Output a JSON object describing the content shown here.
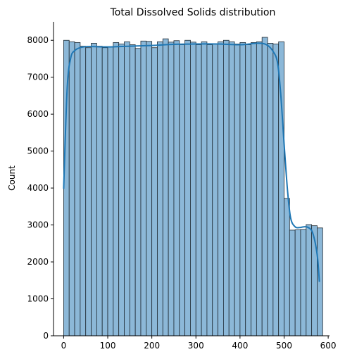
{
  "chart_data": {
    "type": "bar",
    "title": "Total Dissolved Solids distribution",
    "xlabel": "",
    "ylabel": "Count",
    "xlim": [
      -23,
      603
    ],
    "ylim": [
      0,
      8500
    ],
    "xticks": [
      0,
      100,
      200,
      300,
      400,
      500,
      600
    ],
    "yticks": [
      0,
      1000,
      2000,
      3000,
      4000,
      5000,
      6000,
      7000,
      8000
    ],
    "grid": false,
    "bin_width": 12.5,
    "bin_start": 0,
    "values": [
      8000,
      7960,
      7940,
      7840,
      7800,
      7920,
      7840,
      7800,
      7820,
      7940,
      7900,
      7960,
      7880,
      7780,
      7980,
      7970,
      7800,
      7960,
      8040,
      7950,
      7990,
      7880,
      8000,
      7950,
      7880,
      7960,
      7880,
      7900,
      7960,
      8000,
      7960,
      7900,
      7940,
      7880,
      7940,
      7960,
      8080,
      7920,
      7900,
      7960,
      3720,
      2860,
      2870,
      2880,
      3010,
      2980,
      2920
    ],
    "kde": {
      "x": [
        0,
        8,
        16,
        25,
        40,
        60,
        100,
        150,
        200,
        250,
        300,
        350,
        400,
        440,
        460,
        475,
        485,
        492,
        500,
        508,
        515,
        525,
        535,
        545,
        555,
        565,
        575,
        580
      ],
      "y": [
        3980,
        6700,
        7520,
        7720,
        7810,
        7830,
        7820,
        7840,
        7860,
        7890,
        7900,
        7900,
        7880,
        7920,
        7880,
        7700,
        7400,
        6600,
        5200,
        3900,
        3180,
        2950,
        2930,
        2950,
        2930,
        2780,
        2200,
        1460
      ]
    },
    "colors": {
      "bar_fill": "#8cb8d8",
      "bar_edge": "#1f2a33",
      "kde_line": "#1f77b4"
    }
  }
}
